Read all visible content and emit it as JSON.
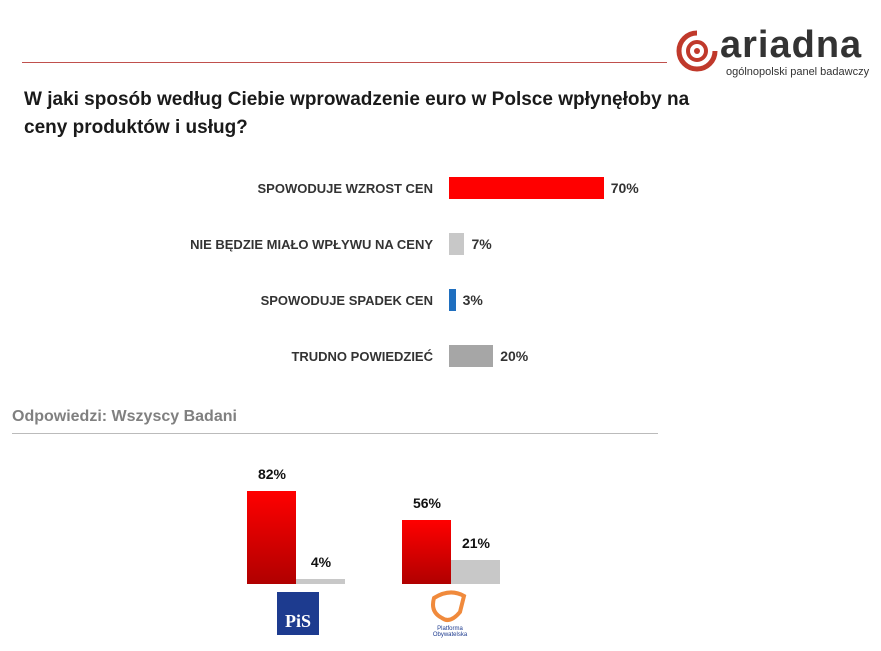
{
  "logo": {
    "word": "ariadna",
    "tagline": "ogólnopolski panel badawczy"
  },
  "chart_data": [
    {
      "type": "bar",
      "orientation": "horizontal",
      "title": "W jaki sposób według Ciebie wprowadzenie euro w Polsce wpłynęłoby na ceny produktów i usług?",
      "categories": [
        "SPOWODUJE WZROST CEN",
        "NIE BĘDZIE MIAŁO WPŁYWU NA CENY",
        "SPOWODUJE SPADEK CEN",
        "TRUDNO POWIEDZIEĆ"
      ],
      "values": [
        70,
        7,
        3,
        20
      ],
      "labels": [
        "70%",
        "7%",
        "3%",
        "20%"
      ],
      "colors": [
        "#ff0000",
        "#c8c8c8",
        "#1f6fbf",
        "#a6a6a6"
      ],
      "grid": false
    },
    {
      "type": "bar",
      "orientation": "vertical",
      "subtitle": "Odpowiedzi: Wszyscy Badani",
      "categories": [
        "PiS",
        "Platforma Obywatelska"
      ],
      "series": [
        {
          "values": [
            82,
            56
          ],
          "labels": [
            "82%",
            "56%"
          ],
          "color": "#e00000"
        },
        {
          "values": [
            4,
            21
          ],
          "labels": [
            "4%",
            "21%"
          ],
          "color": "#c8c8c8"
        }
      ],
      "grid": false
    }
  ]
}
